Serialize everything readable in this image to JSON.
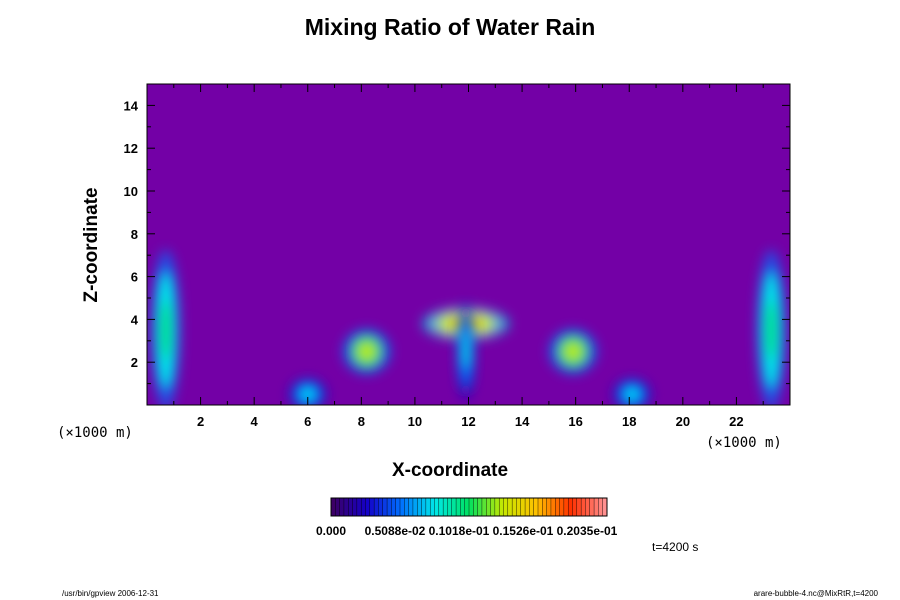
{
  "chart_data": {
    "type": "heatmap",
    "title": "Mixing Ratio of Water Rain",
    "xlabel": "X-coordinate",
    "ylabel": "Z-coordinate",
    "x_unit_label": "(×1000 m)",
    "y_unit_label": "(×1000 m)",
    "xlim": [
      0,
      24
    ],
    "ylim": [
      0,
      15
    ],
    "x_ticks": [
      2,
      4,
      6,
      8,
      10,
      12,
      14,
      16,
      18,
      20,
      22
    ],
    "y_ticks": [
      2,
      4,
      6,
      8,
      10,
      12,
      14
    ],
    "background_color": "#7300a6",
    "colorbar": {
      "labels": [
        "0.000",
        "0.5088e-02",
        "0.1018e-01",
        "0.1526e-01",
        "0.2035e-01"
      ],
      "colors": [
        "#3c0066",
        "#1400c8",
        "#0070ff",
        "#00e8e8",
        "#00e060",
        "#c8e800",
        "#ffc000",
        "#ff3000",
        "#ff9090"
      ]
    },
    "features": [
      {
        "x": 0.7,
        "z": 3.5,
        "rx": 0.3,
        "rz": 2.5,
        "level": 0.45
      },
      {
        "x": 23.3,
        "z": 3.5,
        "rx": 0.3,
        "rz": 2.5,
        "level": 0.45
      },
      {
        "x": 8.2,
        "z": 2.5,
        "rx": 0.5,
        "rz": 0.7,
        "level": 0.65
      },
      {
        "x": 15.9,
        "z": 2.5,
        "rx": 0.5,
        "rz": 0.7,
        "level": 0.65
      },
      {
        "x": 11.9,
        "z": 3.8,
        "rx": 0.9,
        "rz": 0.5,
        "level": 0.75
      },
      {
        "x": 11.9,
        "z": 2.5,
        "rx": 0.2,
        "rz": 1.5,
        "level": 0.4
      },
      {
        "x": 6.0,
        "z": 0.5,
        "rx": 0.4,
        "rz": 0.5,
        "level": 0.35
      },
      {
        "x": 18.1,
        "z": 0.5,
        "rx": 0.4,
        "rz": 0.5,
        "level": 0.35
      }
    ]
  },
  "annotations": {
    "timestamp": "t=4200 s",
    "footer_left": "/usr/bin/gpview 2006-12-31",
    "footer_right": "arare-bubble-4.nc@MixRtR,t=4200"
  }
}
